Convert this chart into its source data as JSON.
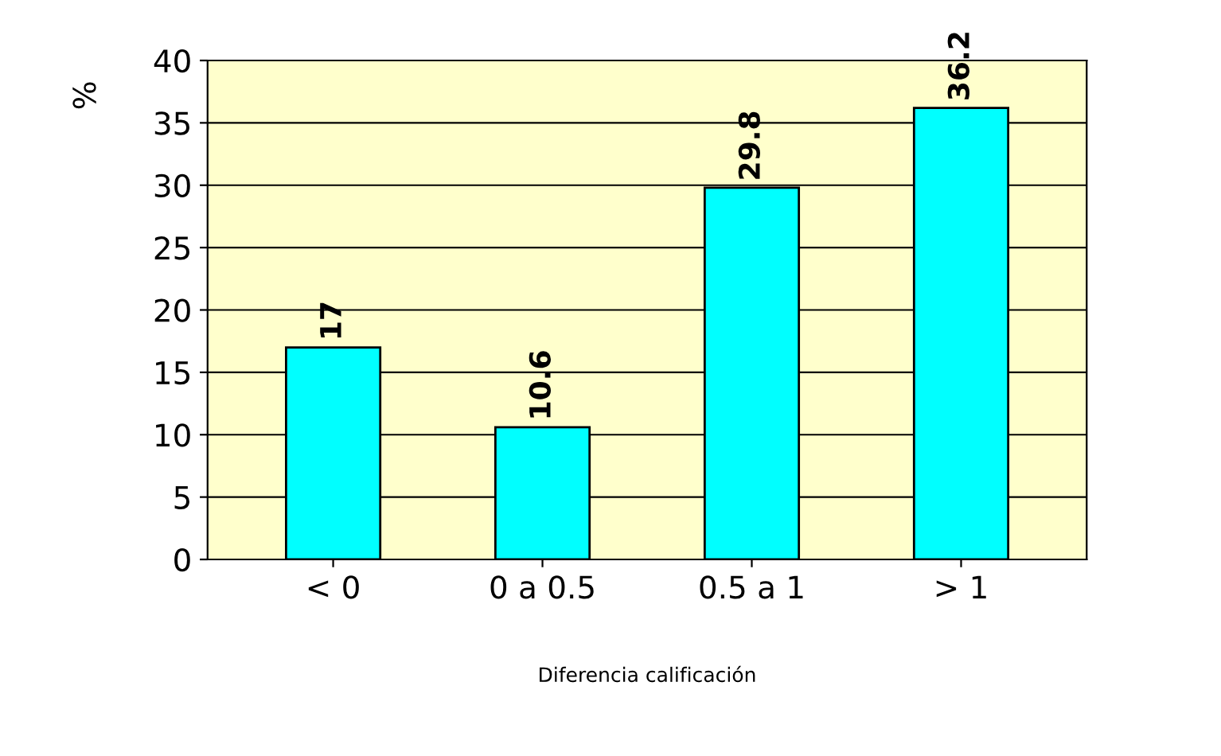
{
  "chart_data": {
    "type": "bar",
    "xlabel": "Diferencia calificación",
    "ylabel": "%",
    "categories": [
      "< 0",
      "0 a 0.5",
      "0.5 a 1",
      "> 1"
    ],
    "values": [
      17,
      10.6,
      29.8,
      36.2
    ],
    "color": "#00ffff",
    "ylim": [
      0,
      40
    ],
    "yticks": [
      0,
      5,
      10,
      15,
      20,
      25,
      30,
      35,
      40
    ],
    "grid": "y",
    "data_labels": true
  }
}
